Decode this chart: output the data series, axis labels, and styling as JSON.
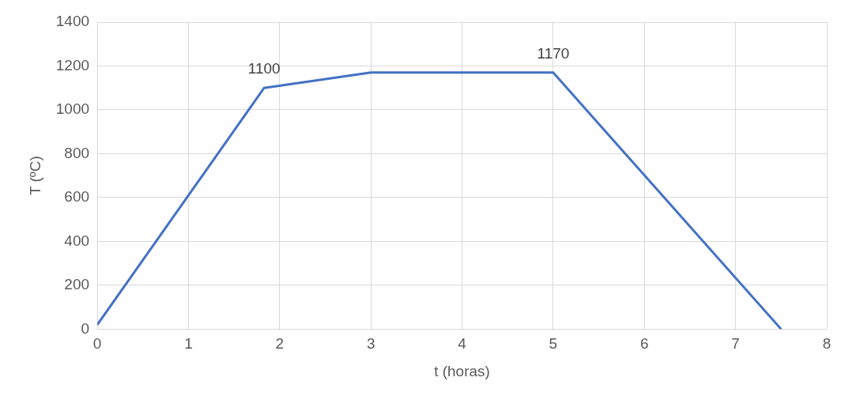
{
  "chart_data": {
    "type": "line",
    "xlabel": "t (horas)",
    "ylabel": "T (ºC)",
    "x": [
      0,
      1.83,
      3,
      5,
      7.5
    ],
    "series": [
      {
        "color": "#4472c4",
        "values": [
          20,
          1100,
          1170,
          1170,
          0
        ],
        "value_labels": [
          null,
          "1100",
          null,
          "1170",
          null
        ]
      }
    ],
    "xlim": [
      0,
      8
    ],
    "xticks": [
      0,
      1,
      2,
      3,
      4,
      5,
      6,
      7,
      8
    ],
    "ylim": [
      0,
      1400
    ],
    "yticks": [
      0,
      200,
      400,
      600,
      800,
      1000,
      1200,
      1400
    ],
    "grid": true,
    "legend": false,
    "marker": "none",
    "line_style": "solid"
  }
}
